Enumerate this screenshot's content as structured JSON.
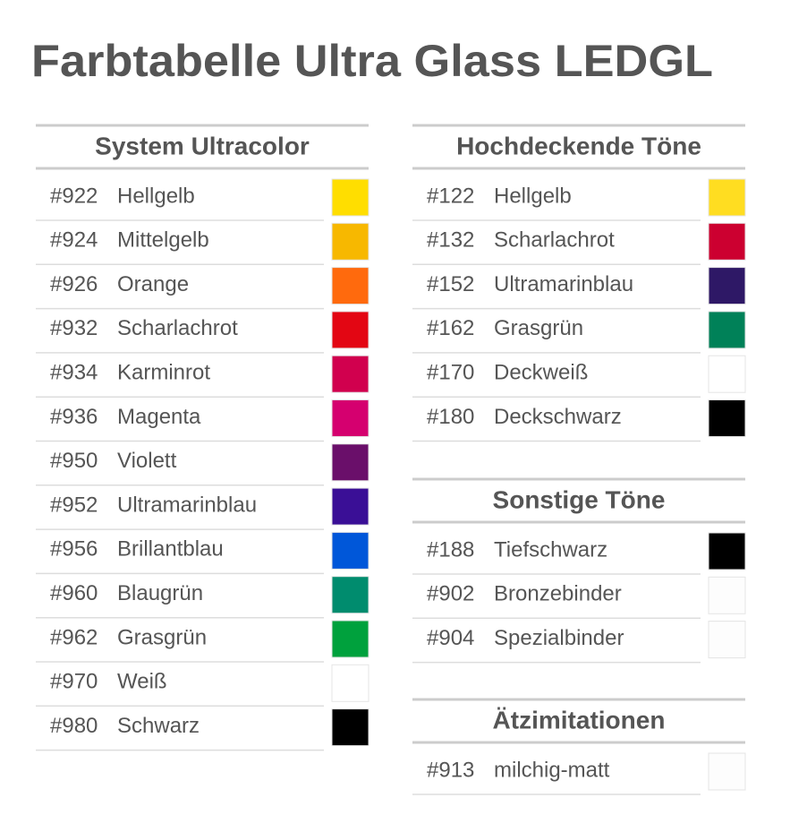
{
  "title": "Farbtabelle Ultra Glass LEDGL",
  "sections": [
    {
      "heading": "System Ultracolor",
      "rows": [
        {
          "code": "#922",
          "name": "Hellgelb",
          "color": "#ffde00"
        },
        {
          "code": "#924",
          "name": "Mittelgelb",
          "color": "#f7b800"
        },
        {
          "code": "#926",
          "name": "Orange",
          "color": "#ff6a0d"
        },
        {
          "code": "#932",
          "name": "Scharlachrot",
          "color": "#e30613"
        },
        {
          "code": "#934",
          "name": "Karminrot",
          "color": "#d1004e"
        },
        {
          "code": "#936",
          "name": "Magenta",
          "color": "#d5006f"
        },
        {
          "code": "#950",
          "name": "Violett",
          "color": "#6a0f6a"
        },
        {
          "code": "#952",
          "name": "Ultramarinblau",
          "color": "#3a0f96"
        },
        {
          "code": "#956",
          "name": "Brillantblau",
          "color": "#0057d9"
        },
        {
          "code": "#960",
          "name": "Blaugrün",
          "color": "#008c6e"
        },
        {
          "code": "#962",
          "name": "Grasgrün",
          "color": "#00a13d"
        },
        {
          "code": "#970",
          "name": "Weiß",
          "color": "#ffffff"
        },
        {
          "code": "#980",
          "name": "Schwarz",
          "color": "#000000"
        }
      ]
    },
    {
      "heading": "Hochdeckende Töne",
      "rows": [
        {
          "code": "#122",
          "name": "Hellgelb",
          "color": "#ffdd21"
        },
        {
          "code": "#132",
          "name": "Scharlachrot",
          "color": "#cc0030"
        },
        {
          "code": "#152",
          "name": "Ultramarinblau",
          "color": "#2e1866"
        },
        {
          "code": "#162",
          "name": "Grasgrün",
          "color": "#008158"
        },
        {
          "code": "#170",
          "name": "Deckweiß",
          "color": "#ffffff"
        },
        {
          "code": "#180",
          "name": "Deckschwarz",
          "color": "#000000"
        }
      ]
    },
    {
      "heading": "Sonstige Töne",
      "rows": [
        {
          "code": "#188",
          "name": "Tiefschwarz",
          "color": "#000000"
        },
        {
          "code": "#902",
          "name": "Bronzebinder",
          "color": "#fdfdfd"
        },
        {
          "code": "#904",
          "name": "Spezialbinder",
          "color": "#fdfdfd"
        }
      ]
    },
    {
      "heading": "Ätzimitationen",
      "rows": [
        {
          "code": "#913",
          "name": "milchig-matt",
          "color": "#fdfdfd"
        }
      ]
    }
  ]
}
